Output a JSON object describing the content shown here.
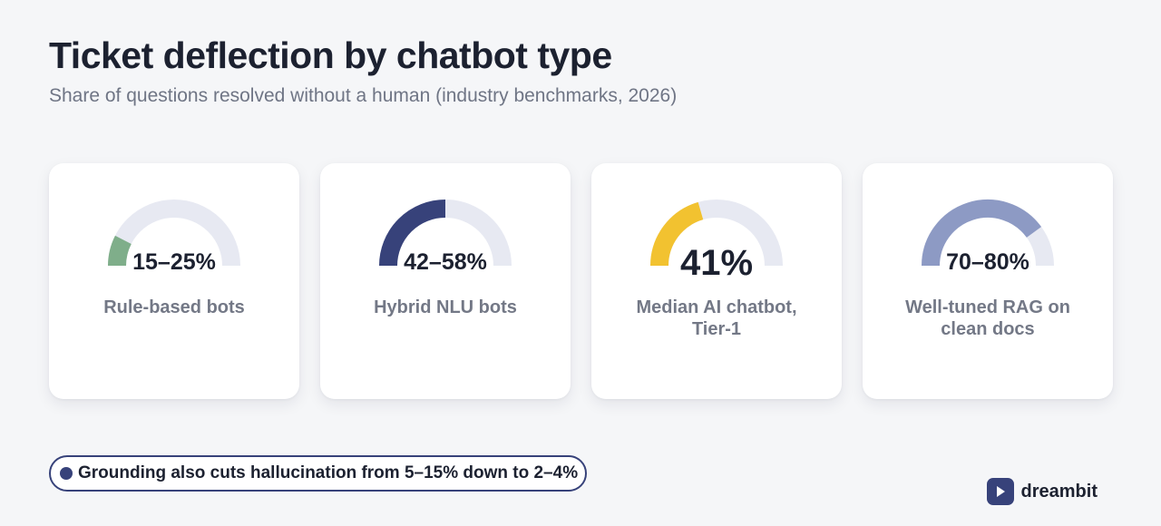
{
  "title": "Ticket deflection by chatbot type",
  "subtitle": "Share of questions resolved without a human (industry benchmarks, 2026)",
  "track_color": "#e7e9f2",
  "chart_data": {
    "type": "gauge",
    "title": "Ticket deflection by chatbot type",
    "subtitle": "Share of questions resolved without a human (industry benchmarks, 2026)",
    "scale": [
      0,
      100
    ],
    "unit": "%",
    "items": [
      {
        "label": "Rule-based bots",
        "value_text": "15–25%",
        "value": 15,
        "range": [
          15,
          25
        ],
        "color": "#7fae8a",
        "emphasis": false
      },
      {
        "label": "Hybrid NLU bots",
        "value_text": "42–58%",
        "value": 50,
        "range": [
          42,
          58
        ],
        "color": "#37427a",
        "emphasis": false
      },
      {
        "label": "Median AI chatbot, Tier-1",
        "value_text": "41%",
        "value": 41,
        "color": "#f2c230",
        "emphasis": true
      },
      {
        "label": "Well-tuned RAG on clean docs",
        "value_text": "70–80%",
        "value": 80,
        "range": [
          70,
          80
        ],
        "color": "#8d9ac4",
        "emphasis": false
      }
    ]
  },
  "footnote": "Grounding also cuts hallucination from 5–15% down to 2–4%",
  "brand": {
    "name": "dreambit",
    "color": "#37427a"
  }
}
